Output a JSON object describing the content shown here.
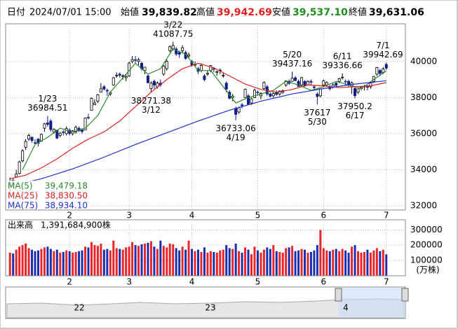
{
  "header": {
    "date_label": "日付",
    "date": "2024/07/01 15:00",
    "open_label": "始値",
    "open": "39,839.82",
    "high_label": "高値",
    "high": "39,942.69",
    "low_label": "安値",
    "low": "39,537.10",
    "close_label": "終値",
    "close": "39,631.06"
  },
  "chart_data": {
    "type": "candlestick",
    "xlim": [
      -0.5,
      120.5
    ],
    "xticks": [
      {
        "value": 19,
        "label": "2"
      },
      {
        "value": 38,
        "label": "3"
      },
      {
        "value": 58,
        "label": "4"
      },
      {
        "value": 79,
        "label": "5"
      },
      {
        "value": 100,
        "label": "6"
      },
      {
        "value": 120,
        "label": "7"
      }
    ],
    "ylim": [
      31770,
      42050
    ],
    "yticks": [
      32000,
      34000,
      36000,
      38000,
      40000
    ],
    "grid": true,
    "up_color": "#ffffff",
    "down_color": "#101c88",
    "legend": "lower left",
    "candles": [
      [
        33193,
        33568,
        32693,
        33288
      ],
      [
        33405,
        33568,
        33091,
        33377
      ],
      [
        33600,
        33990,
        33600,
        33763
      ],
      [
        33800,
        34500,
        33750,
        34441
      ],
      [
        34500,
        35150,
        34400,
        35049
      ],
      [
        35250,
        35700,
        35100,
        35577
      ],
      [
        35700,
        36000,
        35600,
        35901
      ],
      [
        35800,
        35850,
        35500,
        35619
      ],
      [
        35500,
        35700,
        35400,
        35477
      ],
      [
        35700,
        35750,
        35300,
        35466
      ],
      [
        35600,
        36000,
        35550,
        35963
      ],
      [
        36300,
        36600,
        36100,
        36546
      ],
      [
        36600,
        36984.51,
        36400,
        36517
      ],
      [
        36700,
        36800,
        36100,
        36226
      ],
      [
        36100,
        36300,
        36000,
        36236
      ],
      [
        36200,
        36200,
        35700,
        35751
      ],
      [
        35900,
        36100,
        35800,
        36026
      ],
      [
        36100,
        36200,
        35900,
        36065
      ],
      [
        36000,
        36400,
        35900,
        36286
      ],
      [
        36200,
        36300,
        35900,
        36011
      ],
      [
        36000,
        36200,
        35900,
        36158
      ],
      [
        36100,
        36450,
        36000,
        36354
      ],
      [
        36300,
        36400,
        36100,
        36160
      ],
      [
        36200,
        36300,
        36000,
        36119
      ],
      [
        36200,
        36900,
        36200,
        36863
      ],
      [
        36900,
        37100,
        36800,
        36897
      ],
      [
        37300,
        38000,
        37300,
        37963
      ],
      [
        37600,
        37900,
        37600,
        37703
      ],
      [
        37800,
        38200,
        37700,
        38157
      ],
      [
        38300,
        38800,
        38300,
        38487
      ],
      [
        38600,
        38700,
        38400,
        38470
      ],
      [
        38400,
        38500,
        38100,
        38363
      ],
      [
        38200,
        38350,
        38100,
        38262
      ],
      [
        38700,
        39150,
        38650,
        39098
      ],
      [
        39200,
        39400,
        39100,
        39233
      ],
      [
        39300,
        39400,
        39100,
        39239
      ],
      [
        39200,
        39300,
        39000,
        39208
      ],
      [
        39100,
        39300,
        38900,
        39166
      ],
      [
        39200,
        39990,
        39150,
        39910
      ],
      [
        40000,
        40300,
        39900,
        40109
      ],
      [
        40100,
        40300,
        39900,
        40097
      ],
      [
        40000,
        40200,
        39800,
        40090
      ],
      [
        39900,
        40000,
        39500,
        39598
      ],
      [
        39500,
        39700,
        39300,
        39688
      ],
      [
        39200,
        39300,
        38800,
        38820
      ],
      [
        38500,
        38900,
        38271.38,
        38797
      ],
      [
        38900,
        39000,
        38500,
        38695
      ],
      [
        38600,
        38900,
        38500,
        38807
      ],
      [
        38800,
        39000,
        38600,
        38707
      ],
      [
        39300,
        39800,
        39200,
        39740
      ],
      [
        39600,
        40100,
        39500,
        40003
      ],
      [
        40600,
        40900,
        40500,
        40815
      ],
      [
        40700,
        41087.75,
        40600,
        40888
      ],
      [
        40700,
        40800,
        40300,
        40414
      ],
      [
        40500,
        40600,
        40200,
        40398
      ],
      [
        40600,
        40900,
        40500,
        40762
      ],
      [
        40500,
        40600,
        40100,
        40168
      ],
      [
        40300,
        40500,
        40200,
        40369
      ],
      [
        40000,
        40100,
        39700,
        39803
      ],
      [
        39800,
        40000,
        39700,
        39838
      ],
      [
        39600,
        39700,
        39300,
        39451
      ],
      [
        39500,
        39900,
        39400,
        39773
      ],
      [
        39200,
        39300,
        38900,
        38992
      ],
      [
        39300,
        39500,
        39200,
        39347
      ],
      [
        39500,
        39800,
        39400,
        39773
      ],
      [
        39600,
        39700,
        39400,
        39581
      ],
      [
        39400,
        39500,
        39200,
        39442
      ],
      [
        39500,
        39600,
        39300,
        39523
      ],
      [
        39200,
        39400,
        39100,
        39232
      ],
      [
        38800,
        38900,
        38300,
        38471
      ],
      [
        38300,
        38400,
        37900,
        37961
      ],
      [
        38000,
        38200,
        37800,
        38079
      ],
      [
        37400,
        37500,
        36733.06,
        37068
      ],
      [
        37200,
        37500,
        37100,
        37438
      ],
      [
        37600,
        37700,
        37400,
        37552
      ],
      [
        38000,
        38500,
        38000,
        38460
      ],
      [
        38100,
        38200,
        37600,
        37628
      ],
      [
        37700,
        38000,
        37600,
        37934
      ],
      [
        38000,
        38500,
        38000,
        38405
      ],
      [
        38300,
        38400,
        38100,
        38274
      ],
      [
        38100,
        38300,
        37900,
        38236
      ],
      [
        38500,
        38900,
        38400,
        38835
      ],
      [
        38600,
        38700,
        38100,
        38202
      ],
      [
        38200,
        38300,
        38000,
        38073
      ],
      [
        38100,
        38300,
        38000,
        38229
      ],
      [
        38300,
        38400,
        38100,
        38179
      ],
      [
        38200,
        38400,
        38100,
        38356
      ],
      [
        38300,
        38450,
        38200,
        38385
      ],
      [
        38700,
        38950,
        38600,
        38920
      ],
      [
        38900,
        39000,
        38700,
        38787
      ],
      [
        38900,
        39437.16,
        38900,
        39069
      ],
      [
        39100,
        39200,
        38900,
        38946
      ],
      [
        38900,
        39000,
        38600,
        38617
      ],
      [
        38700,
        39150,
        38600,
        39103
      ],
      [
        38900,
        38950,
        38600,
        38646
      ],
      [
        38700,
        38950,
        38700,
        38900
      ],
      [
        38900,
        39000,
        38700,
        38855
      ],
      [
        38600,
        38700,
        38400,
        38556
      ],
      [
        38200,
        38300,
        37617,
        38054
      ],
      [
        38100,
        38500,
        38000,
        38487
      ],
      [
        38700,
        39000,
        38600,
        38923
      ],
      [
        38700,
        38900,
        38600,
        38837
      ],
      [
        38600,
        38700,
        38400,
        38490
      ],
      [
        38600,
        38800,
        38500,
        38703
      ],
      [
        38800,
        38900,
        38600,
        38683
      ],
      [
        38900,
        39100,
        38800,
        39038
      ],
      [
        39100,
        39336.66,
        39000,
        39134
      ],
      [
        38900,
        39000,
        38700,
        38876
      ],
      [
        38900,
        39000,
        38600,
        38720
      ],
      [
        38600,
        38900,
        38200,
        38814
      ],
      [
        38500,
        38600,
        37950.2,
        38102
      ],
      [
        38300,
        38500,
        38200,
        38482
      ],
      [
        38500,
        38600,
        38400,
        38570
      ],
      [
        38600,
        38700,
        38400,
        38633
      ],
      [
        38600,
        38700,
        38400,
        38596
      ],
      [
        38600,
        38900,
        38500,
        38804
      ],
      [
        38900,
        39200,
        38800,
        39173
      ],
      [
        39300,
        39700,
        39200,
        39667
      ],
      [
        39500,
        39600,
        39200,
        39341
      ],
      [
        39400,
        39700,
        39300,
        39583
      ],
      [
        39839.82,
        39942.69,
        39537.1,
        39631.06
      ]
    ],
    "series": [
      {
        "name": "MA(5)",
        "color": "#2a8a2a",
        "label": "39,479.18",
        "x": [
          4,
          8,
          12,
          16,
          20,
          24,
          28,
          32,
          36,
          40,
          44,
          48,
          52,
          56,
          60,
          64,
          68,
          72,
          76,
          80,
          84,
          88,
          92,
          96,
          100,
          104,
          108,
          112,
          116,
          120
        ],
        "values": [
          34000,
          35400,
          35800,
          36300,
          36100,
          36300,
          37000,
          38300,
          39100,
          39900,
          39300,
          39600,
          40700,
          40400,
          39500,
          39500,
          38600,
          37700,
          38000,
          38200,
          38400,
          38900,
          38700,
          38400,
          38600,
          38900,
          38700,
          38500,
          39000,
          39479.18
        ]
      },
      {
        "name": "MA(25)",
        "color": "#e02020",
        "label": "38,830.50",
        "x": [
          0,
          5,
          10,
          15,
          20,
          25,
          30,
          35,
          40,
          45,
          50,
          55,
          60,
          65,
          70,
          75,
          80,
          85,
          90,
          95,
          100,
          105,
          110,
          115,
          120
        ],
        "values": [
          33500,
          33700,
          34100,
          34600,
          35200,
          35700,
          36100,
          36700,
          37500,
          38300,
          39000,
          39600,
          39900,
          39650,
          39200,
          38750,
          38450,
          38300,
          38450,
          38700,
          38650,
          38550,
          38600,
          38650,
          38830.5
        ]
      },
      {
        "name": "MA(75)",
        "color": "#1c2fd0",
        "label": "38,934.10",
        "x": [
          0,
          10,
          20,
          30,
          40,
          50,
          60,
          70,
          80,
          90,
          100,
          110,
          120
        ],
        "values": [
          33100,
          33500,
          34050,
          34700,
          35400,
          36050,
          36700,
          37300,
          37800,
          38200,
          38500,
          38750,
          38934.1
        ]
      }
    ],
    "annotations": [
      {
        "date": "1/23",
        "value": 36984.51
      },
      {
        "date": "3/22",
        "value": 41087.75
      },
      {
        "date": "3/12",
        "value": 38271.38
      },
      {
        "date": "4/19",
        "value": 36733.06
      },
      {
        "date": "5/20",
        "value": 39437.16
      },
      {
        "date": "5/30",
        "value": 37617
      },
      {
        "date": "6/11",
        "value": 39336.66
      },
      {
        "date": "6/17",
        "value": 37950.2
      },
      {
        "date": "7/1",
        "value": 39942.69
      }
    ],
    "volume": {
      "title": "出来高",
      "total": "1,391,684,900株",
      "unit": "(万株)",
      "up_color": "#e8262a",
      "down_color": "#1a2fb0",
      "ylim": [
        0,
        330000
      ],
      "yticks": [
        100000,
        200000,
        300000
      ],
      "values": [
        150000,
        145000,
        170000,
        190000,
        200000,
        210000,
        180000,
        170000,
        160000,
        165000,
        175000,
        185000,
        190000,
        175000,
        160000,
        170000,
        150000,
        155000,
        165000,
        160000,
        150000,
        155000,
        160000,
        165000,
        190000,
        185000,
        220000,
        200000,
        195000,
        210000,
        170000,
        175000,
        165000,
        230000,
        180000,
        175000,
        170000,
        185000,
        190000,
        220000,
        200000,
        195000,
        205000,
        210000,
        215000,
        225000,
        190000,
        175000,
        230000,
        195000,
        185000,
        210000,
        205000,
        180000,
        165000,
        190000,
        170000,
        230000,
        175000,
        160000,
        170000,
        155000,
        185000,
        150000,
        160000,
        155000,
        150000,
        165000,
        170000,
        200000,
        180000,
        175000,
        210000,
        160000,
        150000,
        185000,
        170000,
        140000,
        190000,
        165000,
        150000,
        170000,
        185000,
        175000,
        200000,
        160000,
        155000,
        150000,
        180000,
        185000,
        195000,
        160000,
        165000,
        175000,
        170000,
        150000,
        155000,
        165000,
        200000,
        300000,
        180000,
        165000,
        160000,
        170000,
        175000,
        160000,
        175000,
        165000,
        150000,
        190000,
        200000,
        160000,
        150000,
        155000,
        170000,
        150000,
        165000,
        180000,
        160000,
        170000,
        139168.49
      ]
    },
    "navigator": {
      "labels": [
        "22",
        "23",
        "4"
      ]
    }
  }
}
